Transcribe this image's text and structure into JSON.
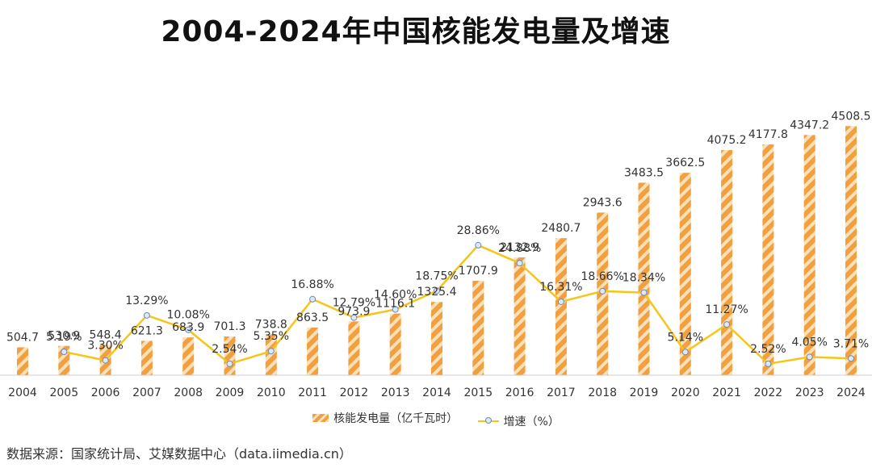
{
  "title": "2004-2024年中国核能发电量及增速",
  "legend": {
    "bar_label": "核能发电量（亿千瓦时）",
    "line_label": "增速（%）"
  },
  "source": "数据来源：国家统计局、艾媒数据中心（data.iimedia.cn）",
  "colors": {
    "bar": "#f0a040",
    "bar_light": "#fce0b8",
    "line": "#f5c518",
    "marker_fill": "#dfe8f7",
    "marker_stroke": "#6a88c8"
  },
  "chart_data": {
    "type": "bar+line",
    "title": "2004-2024年中国核能发电量及增速",
    "categories": [
      "2004",
      "2005",
      "2006",
      "2007",
      "2008",
      "2009",
      "2010",
      "2011",
      "2012",
      "2013",
      "2014",
      "2015",
      "2016",
      "2017",
      "2018",
      "2019",
      "2020",
      "2021",
      "2022",
      "2023",
      "2024"
    ],
    "series": [
      {
        "name": "核能发电量（亿千瓦时）",
        "type": "bar",
        "values": [
          504.7,
          530.9,
          548.4,
          621.3,
          683.9,
          701.3,
          738.8,
          863.5,
          973.9,
          1116.1,
          1325.4,
          1707.9,
          2132.9,
          2480.7,
          2943.6,
          3483.5,
          3662.5,
          4075.2,
          4177.8,
          4347.2,
          4508.5
        ],
        "labels": [
          "504.7",
          "530.9",
          "548.4",
          "621.3",
          "683.9",
          "701.3",
          "738.8",
          "863.5",
          "973.9",
          "1116.1",
          "1325.4",
          "1707.9",
          "2132.9",
          "2480.7",
          "2943.6",
          "3483.5",
          "3662.5",
          "4075.2",
          "4177.8",
          "4347.2",
          "4508.5"
        ]
      },
      {
        "name": "增速（%）",
        "type": "line",
        "values": [
          null,
          5.19,
          3.3,
          13.29,
          10.08,
          2.54,
          5.35,
          16.88,
          12.79,
          14.6,
          18.75,
          28.86,
          24.88,
          16.31,
          18.66,
          18.34,
          5.14,
          11.27,
          2.52,
          4.05,
          3.71
        ],
        "labels": [
          "",
          "5.19%",
          "3.30%",
          "13.29%",
          "10.08%",
          "2.54%",
          "5.35%",
          "16.88%",
          "12.79%",
          "14.60%",
          "18.75%",
          "28.86%",
          "24.88%",
          "16.31%",
          "18.66%",
          "18.34%",
          "5.14%",
          "11.27%",
          "2.52%",
          "4.05%",
          "3.71%"
        ]
      }
    ],
    "y_bar_range": [
      0,
      4600
    ],
    "y_line_range": [
      0,
      43
    ],
    "legend_position": "bottom",
    "grid": false
  }
}
